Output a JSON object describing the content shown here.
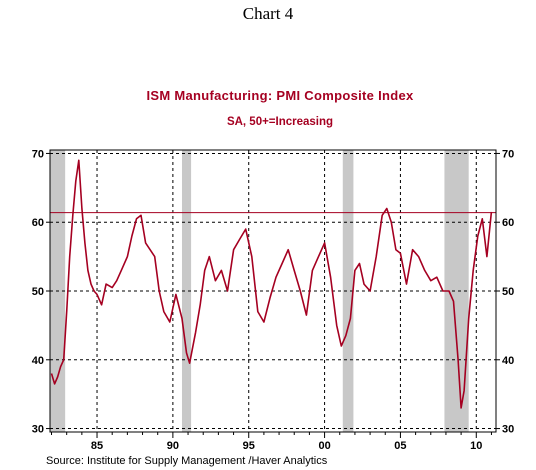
{
  "page_title": "Chart 4",
  "source": "Source:  Institute for Supply Management /Haver Analytics",
  "chart_data": {
    "type": "line",
    "title": "ISM Manufacturing: PMI Composite Index",
    "subtitle": "SA, 50+=Increasing",
    "xlabel": "",
    "ylabel": "",
    "xlim": [
      1981.9,
      2011.3
    ],
    "ylim": [
      29.5,
      70.5
    ],
    "x_tick_labels": [
      "85",
      "90",
      "95",
      "00",
      "05",
      "10"
    ],
    "x_tick_values": [
      1985,
      1990,
      1995,
      2000,
      2005,
      2010
    ],
    "y_ticks": [
      30,
      40,
      50,
      60,
      70
    ],
    "grid": "dotted",
    "reference_line": 61.4,
    "recessions": [
      [
        1981.9,
        1982.9
      ],
      [
        1990.6,
        1991.2
      ],
      [
        2001.2,
        2001.9
      ],
      [
        2007.9,
        2009.5
      ]
    ],
    "series": [
      {
        "name": "",
        "color": "#a50021",
        "x": [
          1982.0,
          1982.2,
          1982.4,
          1982.6,
          1982.8,
          1983.0,
          1983.2,
          1983.4,
          1983.6,
          1983.8,
          1984.0,
          1984.2,
          1984.4,
          1984.6,
          1984.8,
          1985.0,
          1985.3,
          1985.6,
          1986.0,
          1986.3,
          1986.6,
          1987.0,
          1987.3,
          1987.6,
          1987.9,
          1988.2,
          1988.5,
          1988.8,
          1989.1,
          1989.4,
          1989.8,
          1990.2,
          1990.6,
          1990.9,
          1991.1,
          1991.5,
          1991.8,
          1992.1,
          1992.4,
          1992.8,
          1993.2,
          1993.6,
          1994.0,
          1994.4,
          1994.8,
          1995.2,
          1995.6,
          1996.0,
          1996.4,
          1996.8,
          1997.2,
          1997.6,
          1998.0,
          1998.4,
          1998.8,
          1999.2,
          1999.6,
          2000.0,
          2000.4,
          2000.8,
          2001.1,
          2001.4,
          2001.7,
          2002.0,
          2002.3,
          2002.6,
          2003.0,
          2003.4,
          2003.8,
          2004.1,
          2004.4,
          2004.7,
          2005.0,
          2005.4,
          2005.8,
          2006.2,
          2006.6,
          2007.0,
          2007.4,
          2007.8,
          2008.2,
          2008.5,
          2008.8,
          2009.0,
          2009.2,
          2009.5,
          2009.8,
          2010.1,
          2010.4,
          2010.7,
          2011.0
        ],
        "values": [
          38.0,
          36.5,
          37.5,
          39.0,
          40.0,
          47.0,
          55.0,
          61.0,
          66.0,
          69.0,
          62.0,
          57.0,
          53.0,
          51.0,
          50.0,
          49.5,
          48.0,
          51.0,
          50.5,
          51.5,
          53.0,
          55.0,
          58.0,
          60.5,
          61.0,
          57.0,
          56.0,
          55.0,
          50.0,
          47.0,
          45.5,
          49.5,
          46.0,
          41.0,
          39.5,
          44.0,
          48.0,
          53.0,
          55.0,
          51.5,
          53.0,
          50.0,
          56.0,
          57.5,
          59.0,
          55.0,
          47.0,
          45.5,
          49.0,
          52.0,
          54.0,
          56.0,
          53.0,
          50.0,
          46.5,
          53.0,
          55.0,
          57.0,
          52.0,
          45.0,
          42.0,
          43.5,
          46.0,
          53.0,
          54.0,
          51.0,
          50.0,
          55.0,
          61.0,
          62.0,
          60.0,
          56.0,
          55.5,
          51.0,
          56.0,
          55.0,
          53.0,
          51.5,
          52.0,
          50.0,
          50.0,
          48.5,
          40.0,
          33.0,
          35.5,
          46.0,
          53.0,
          58.0,
          60.5,
          55.0,
          61.5
        ]
      }
    ]
  }
}
